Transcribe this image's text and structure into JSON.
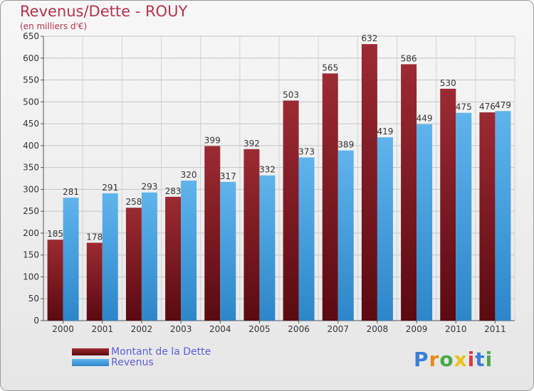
{
  "title": "Revenus/Dette - ROUY",
  "subtitle": "(en milliers d'€)",
  "logo": [
    "P",
    "r",
    "o",
    "x",
    "i",
    "t",
    "i"
  ],
  "colors": {
    "dette_top": "#9c2a33",
    "dette_bottom": "#5a0a10",
    "revenus_top": "#5fb4ec",
    "revenus_bottom": "#2d86c9",
    "title": "#b5344f",
    "legend_text": "#5d5dd9",
    "logo": [
      "#3a7fd5",
      "#e88a1a",
      "#4aa84a",
      "#e8c21a",
      "#d83a3a",
      "#3a7fd5",
      "#4aa84a"
    ]
  },
  "chart_data": {
    "type": "bar",
    "categories": [
      "2000",
      "2001",
      "2002",
      "2003",
      "2004",
      "2005",
      "2006",
      "2007",
      "2008",
      "2009",
      "2010",
      "2011"
    ],
    "series": [
      {
        "name": "Montant de la Dette",
        "values": [
          185,
          178,
          258,
          283,
          399,
          392,
          503,
          565,
          632,
          586,
          530,
          476
        ]
      },
      {
        "name": "Revenus",
        "values": [
          281,
          291,
          293,
          320,
          317,
          332,
          373,
          389,
          419,
          449,
          475,
          479
        ]
      }
    ],
    "ylim": [
      0,
      650
    ],
    "yticks": [
      0,
      50,
      100,
      150,
      200,
      250,
      300,
      350,
      400,
      450,
      500,
      550,
      600,
      650
    ],
    "grid": true,
    "legend_position": "bottom-left"
  }
}
